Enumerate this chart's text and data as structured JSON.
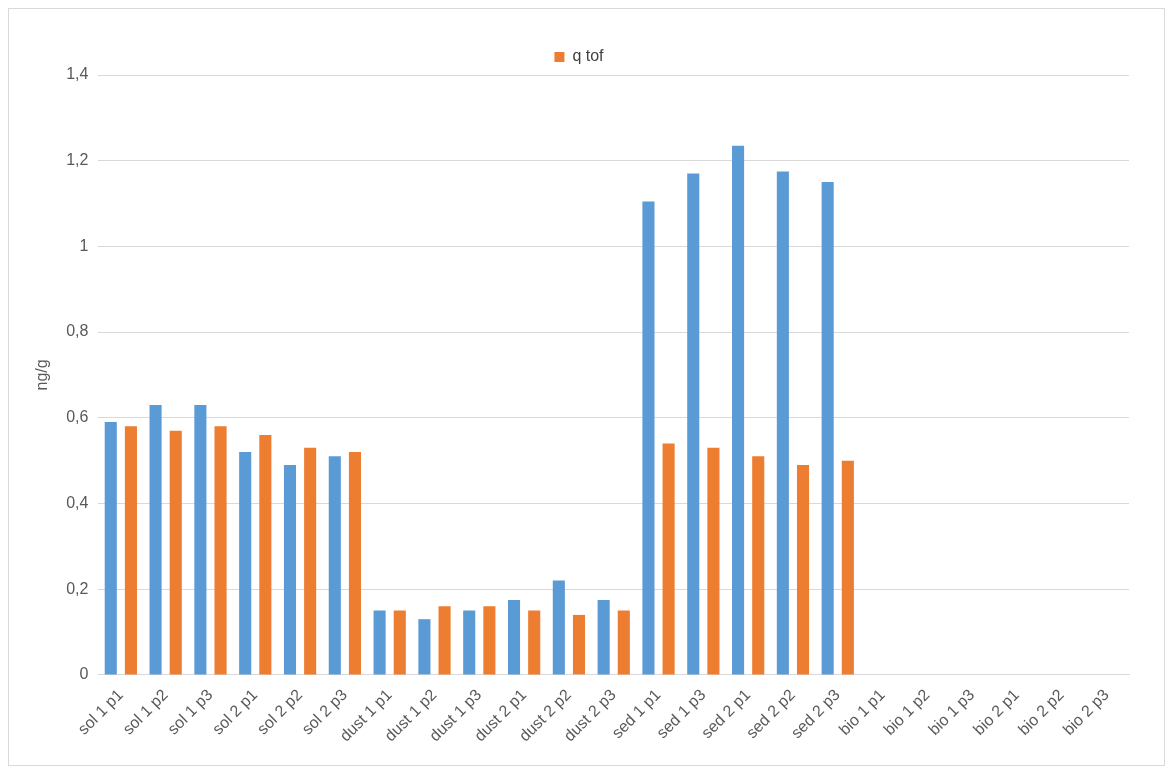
{
  "chart_data": {
    "type": "bar",
    "ylabel": "ng/g",
    "categories": [
      "sol 1 p1",
      "sol 1 p2",
      "sol 1 p3",
      "sol 2 p1",
      "sol 2 p2",
      "sol 2 p3",
      "dust 1 p1",
      "dust 1 p2",
      "dust 1 p3",
      "dust 2 p1",
      "dust 2 p2",
      "dust 2 p3",
      "sed 1 p1",
      "sed 1 p3",
      "sed 2 p1",
      "sed 2 p2",
      "sed 2 p3",
      "bio 1 p1",
      "bio 1 p2",
      "bio 1 p3",
      "bio 2 p1",
      "bio 2 p2",
      "bio 2 p3"
    ],
    "series": [
      {
        "color": "#5b9bd5",
        "values": [
          0.59,
          0.63,
          0.63,
          0.52,
          0.49,
          0.51,
          0.15,
          0.13,
          0.15,
          0.175,
          0.22,
          0.175,
          1.105,
          1.17,
          1.235,
          1.175,
          1.15,
          0,
          0,
          0,
          0,
          0,
          0
        ]
      },
      {
        "name": "q tof",
        "color": "#ed7d31",
        "values": [
          0.58,
          0.57,
          0.58,
          0.56,
          0.53,
          0.52,
          0.15,
          0.16,
          0.16,
          0.15,
          0.14,
          0.15,
          0.54,
          0.53,
          0.51,
          0.49,
          0.5,
          0,
          0,
          0,
          0,
          0,
          0
        ]
      }
    ],
    "ylim": [
      0,
      1.4
    ],
    "yticks": [
      0,
      {
        "value": 0.2,
        "label": "0,2"
      },
      {
        "value": 0.4,
        "label": "0,4"
      },
      {
        "value": 0.6,
        "label": "0,6"
      },
      {
        "value": 0.8,
        "label": "0,8"
      },
      1,
      {
        "value": 1.2,
        "label": "1,2"
      },
      {
        "value": 1.4,
        "label": "1,4"
      }
    ],
    "grid": "y",
    "legend": "top"
  }
}
